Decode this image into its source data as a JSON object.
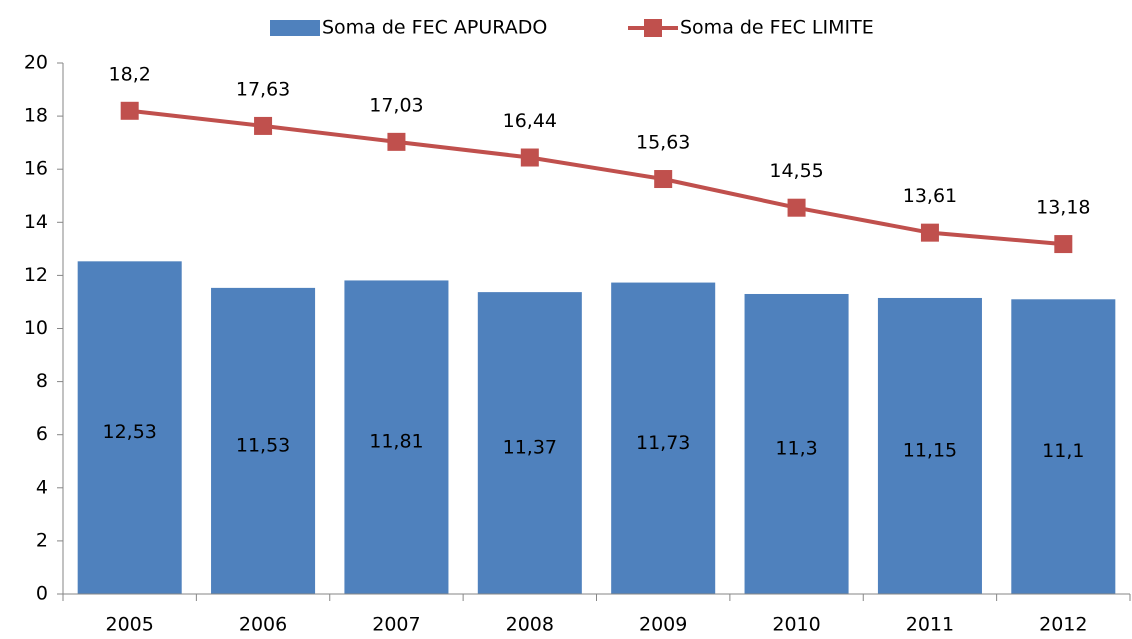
{
  "chart_data": {
    "type": "bar",
    "categories": [
      "2005",
      "2006",
      "2007",
      "2008",
      "2009",
      "2010",
      "2011",
      "2012"
    ],
    "series": [
      {
        "name": "Soma de FEC APURADO",
        "type": "bar",
        "color": "#4f81bd",
        "values": [
          12.53,
          11.53,
          11.81,
          11.37,
          11.73,
          11.3,
          11.15,
          11.1
        ],
        "value_labels": [
          "12,53",
          "11,53",
          "11,81",
          "11,37",
          "11,73",
          "11,3",
          "11,15",
          "11,1"
        ]
      },
      {
        "name": "Soma de FEC LIMITE",
        "type": "line",
        "color": "#c0504d",
        "values": [
          18.2,
          17.63,
          17.03,
          16.44,
          15.63,
          14.55,
          13.61,
          13.18
        ],
        "value_labels": [
          "18,2",
          "17,63",
          "17,03",
          "16,44",
          "15,63",
          "14,55",
          "13,61",
          "13,18"
        ]
      }
    ],
    "ylim": [
      0,
      20
    ],
    "yticks": [
      0,
      2,
      4,
      6,
      8,
      10,
      12,
      14,
      16,
      18,
      20
    ],
    "grid": false,
    "legend": "top"
  }
}
